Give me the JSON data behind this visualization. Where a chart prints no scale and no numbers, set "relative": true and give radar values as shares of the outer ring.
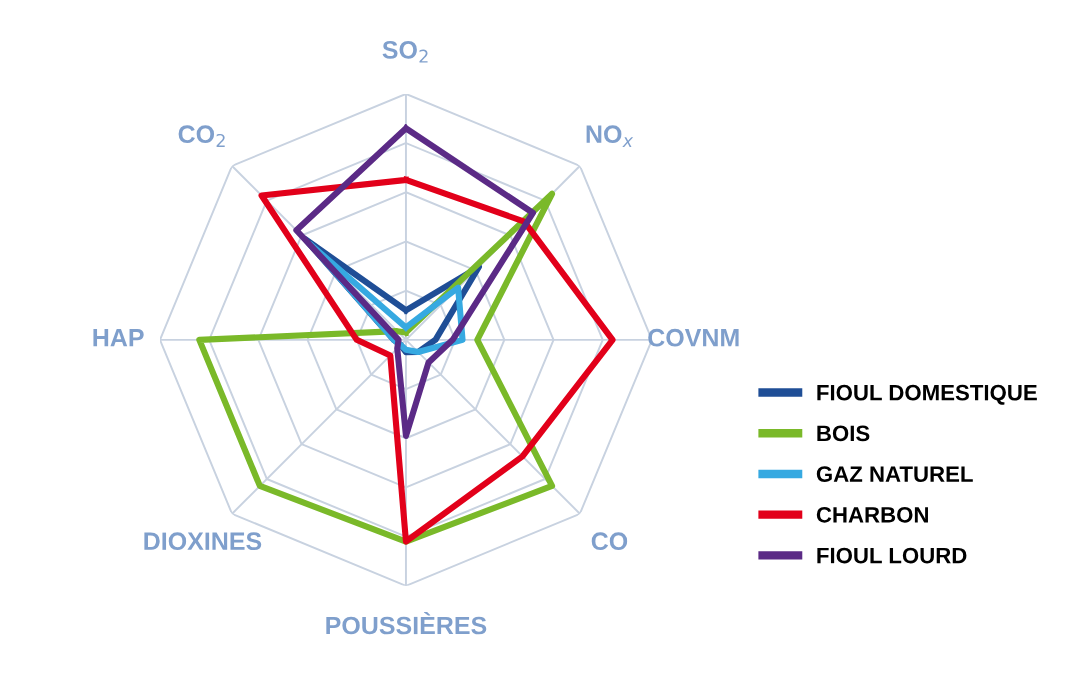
{
  "chart_data": {
    "type": "radar",
    "relative": true,
    "grid": true,
    "legend": "right",
    "categories": [
      "SO$_{2}$",
      "NO$_{x}$",
      "COVNM",
      "CO",
      "POUSSIÈRES",
      "DIOXINES",
      "HAP",
      "CO$_{2}$"
    ],
    "series": [
      {
        "name": "FIOUL DOMESTIQUE",
        "color": "#1f4e96",
        "values": [
          0.12,
          0.42,
          0.12,
          0.07,
          0.05,
          0.03,
          0.05,
          0.58
        ]
      },
      {
        "name": "BOIS",
        "color": "#7ab929",
        "values": [
          0.03,
          0.84,
          0.29,
          0.84,
          0.82,
          0.84,
          0.84,
          0.05
        ]
      },
      {
        "name": "GAZ NATUREL",
        "color": "#36a9e1",
        "values": [
          0.05,
          0.3,
          0.23,
          0.07,
          0.04,
          0.03,
          0.05,
          0.55
        ]
      },
      {
        "name": "CHARBON",
        "color": "#e2001a",
        "values": [
          0.65,
          0.68,
          0.84,
          0.67,
          0.82,
          0.09,
          0.2,
          0.83
        ]
      },
      {
        "name": "FIOUL LOURD",
        "color": "#5b2a86",
        "values": [
          0.86,
          0.73,
          0.19,
          0.13,
          0.39,
          0.05,
          0.03,
          0.63
        ]
      }
    ]
  }
}
